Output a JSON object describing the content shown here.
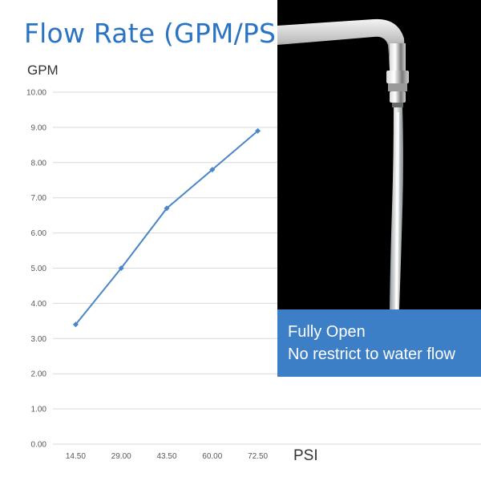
{
  "title": "Flow Rate (GPM/PSI)",
  "caption": {
    "line1": "Fully Open",
    "line2": "No restrict to water flow"
  },
  "colors": {
    "title": "#2b74c4",
    "series": "#4a86c8",
    "caption_bg": "#3d7fc6",
    "photo_bg": "#000000"
  },
  "chart_data": {
    "type": "line",
    "xlabel": "PSI",
    "ylabel": "GPM",
    "categories": [
      "14.50",
      "29.00",
      "43.50",
      "60.00",
      "72.50"
    ],
    "series": [
      {
        "values": [
          3.4,
          5.0,
          6.7,
          7.8,
          8.9
        ]
      }
    ],
    "ylim": [
      0,
      10
    ],
    "yticks": [
      "0.00",
      "1.00",
      "2.00",
      "3.00",
      "4.00",
      "5.00",
      "6.00",
      "7.00",
      "8.00",
      "9.00",
      "10.00"
    ],
    "grid": true,
    "marker": "diamond"
  },
  "image": {
    "subject": "faucet-with-running-water"
  }
}
